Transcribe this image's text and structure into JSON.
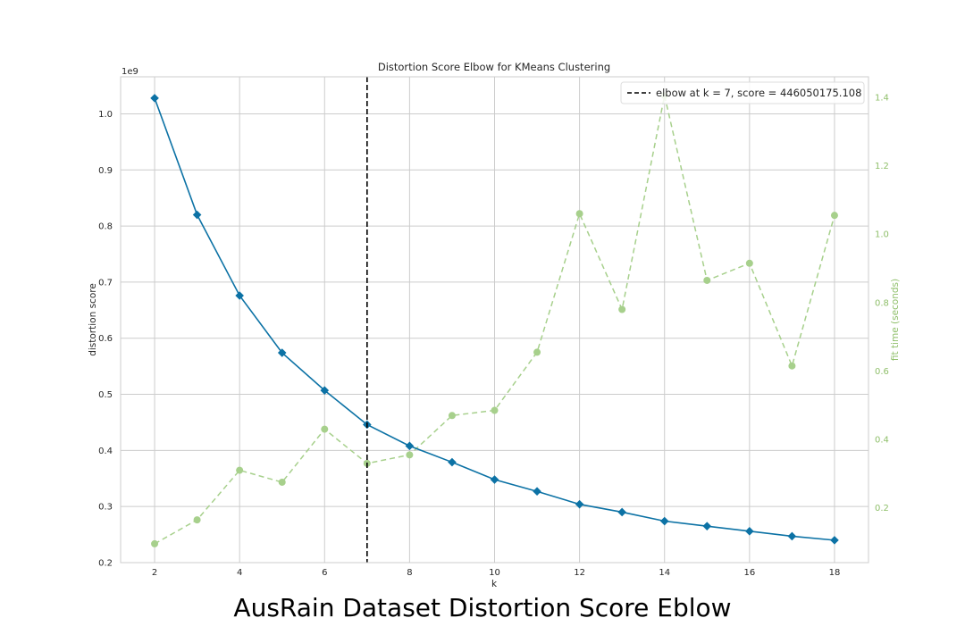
{
  "chart_data": {
    "type": "line",
    "title": "Distortion Score Elbow for KMeans Clustering",
    "xlabel": "k",
    "ylabel": "distortion score",
    "y2label": "fit time (seconds)",
    "y_offset_label": "1e9",
    "xlim": [
      1.2,
      18.8
    ],
    "ylim": [
      0.2,
      1.066
    ],
    "y2lim": [
      0.04,
      1.46
    ],
    "x_ticks": [
      2,
      4,
      6,
      8,
      10,
      12,
      14,
      16,
      18
    ],
    "y_ticks": [
      0.2,
      0.3,
      0.4,
      0.5,
      0.6,
      0.7,
      0.8,
      0.9,
      1.0
    ],
    "y2_ticks": [
      0.2,
      0.4,
      0.6,
      0.8,
      1.0,
      1.2,
      1.4
    ],
    "grid": true,
    "legend_position": "top-right",
    "legend_text": "elbow at k = 7, score = 446050175.108",
    "elbow_k": 7,
    "elbow_score": 446050175.108,
    "colors": {
      "distortion": "#0c72a5",
      "fit_time": "#a7d08c",
      "elbow": "#000000",
      "grid": "#cccccc",
      "right_axis": "#8fbf6a"
    },
    "x": [
      2,
      3,
      4,
      5,
      6,
      7,
      8,
      9,
      10,
      11,
      12,
      13,
      14,
      15,
      16,
      17,
      18
    ],
    "series": [
      {
        "name": "distortion score",
        "axis": "left",
        "values": [
          1.028,
          0.82,
          0.676,
          0.574,
          0.507,
          0.446,
          0.408,
          0.379,
          0.348,
          0.327,
          0.304,
          0.29,
          0.274,
          0.265,
          0.256,
          0.247,
          0.24
        ]
      },
      {
        "name": "fit time (seconds)",
        "axis": "right",
        "values": [
          0.095,
          0.165,
          0.31,
          0.275,
          0.43,
          0.33,
          0.355,
          0.47,
          0.485,
          0.655,
          1.06,
          0.78,
          1.405,
          0.865,
          0.915,
          0.615,
          1.055
        ]
      }
    ]
  },
  "caption": "AusRain Dataset Distortion Score Eblow"
}
